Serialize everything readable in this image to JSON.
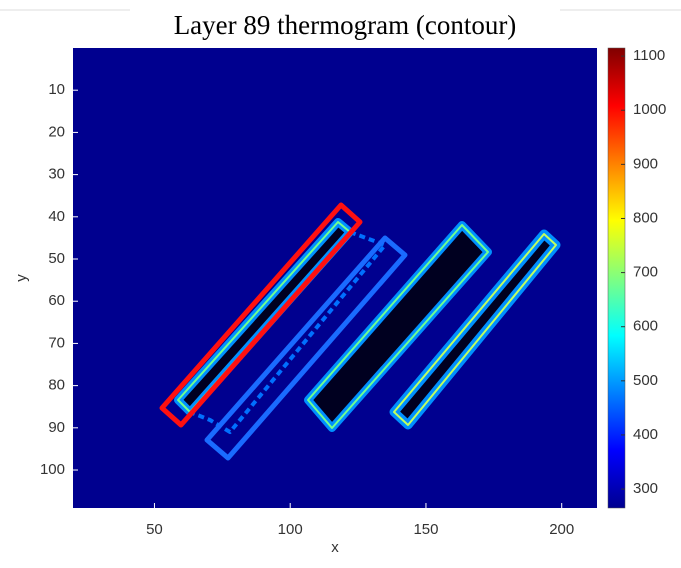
{
  "chart_data": {
    "type": "heatmap",
    "title": "Layer 89 thermogram (contour)",
    "xlabel": "x",
    "ylabel": "y",
    "xlim": [
      20,
      213
    ],
    "xticks": [
      50,
      100,
      150,
      200
    ],
    "ylim": [
      0,
      109
    ],
    "yticks": [
      10,
      20,
      30,
      40,
      50,
      60,
      70,
      80,
      90,
      100
    ],
    "y_reversed": true,
    "background_color": "#00008f",
    "colorbar": {
      "clim": [
        265,
        1115
      ],
      "ticks": [
        300,
        400,
        500,
        600,
        700,
        800,
        900,
        1000,
        1100
      ],
      "colormap": [
        "#00008f",
        "#0000ff",
        "#0080ff",
        "#00ffff",
        "#80ff80",
        "#ffff00",
        "#ff8000",
        "#ff0000",
        "#800000"
      ]
    }
  }
}
